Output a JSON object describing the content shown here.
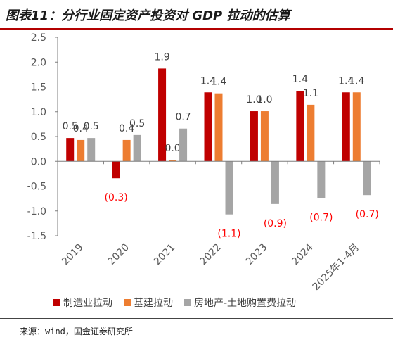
{
  "header": {
    "title": "图表11：分行业固定资产投资对 GDP 拉动的估算"
  },
  "footer": {
    "source": "来源：wind，国金证券研究所"
  },
  "colors": {
    "series": [
      "#c00000",
      "#ed7d31",
      "#a5a5a5"
    ],
    "negative_label": "#ff0000",
    "positive_label": "#404040",
    "title_rule": "#b30000"
  },
  "chart_data": {
    "type": "bar",
    "categories": [
      "2019",
      "2020",
      "2021",
      "2022",
      "2023",
      "2024",
      "2025年1-4月"
    ],
    "series": [
      {
        "name": "制造业拉动",
        "values": [
          0.47,
          -0.34,
          1.87,
          1.39,
          1.01,
          1.42,
          1.39
        ],
        "labels": [
          "0.5",
          "(0.3)",
          "1.9",
          "1.4",
          "1.0",
          "1.4",
          "1.4"
        ]
      },
      {
        "name": "基建拉动",
        "values": [
          0.43,
          0.43,
          0.03,
          1.37,
          1.01,
          1.14,
          1.39
        ],
        "labels": [
          "0.4",
          "0.4",
          "0.0",
          "1.4",
          "1.0",
          "1.1",
          "1.4"
        ]
      },
      {
        "name": "房地产-土地购置费拉动",
        "values": [
          0.47,
          0.53,
          0.66,
          -1.07,
          -0.86,
          -0.74,
          -0.68
        ],
        "labels": [
          "0.5",
          "0.5",
          "0.7",
          "(1.1)",
          "(0.9)",
          "(0.7)",
          "(0.7)"
        ]
      }
    ],
    "yticks": [
      "2.5",
      "2.0",
      "1.5",
      "1.0",
      "0.5",
      "0.0",
      "-0.5",
      "-1.0",
      "-1.5"
    ],
    "ylim": [
      -1.5,
      2.5
    ],
    "legend_position": "bottom",
    "grid": false
  }
}
